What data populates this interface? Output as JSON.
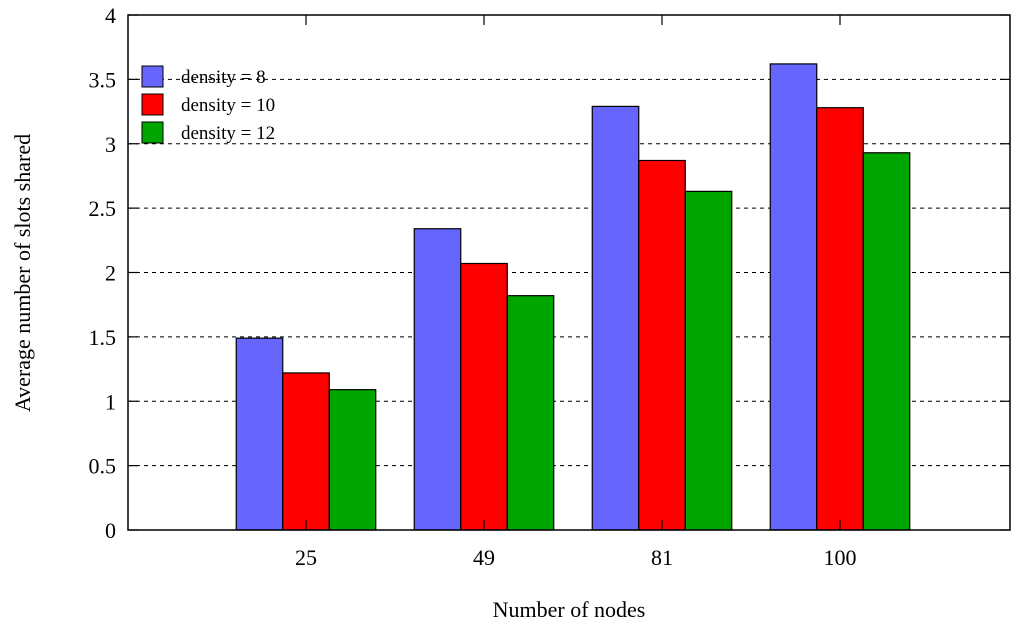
{
  "chart_data": {
    "type": "bar",
    "title": "",
    "xlabel": "Number of nodes",
    "ylabel": "Average number of slots shared",
    "categories": [
      "25",
      "49",
      "81",
      "100"
    ],
    "series": [
      {
        "name": "density = 8",
        "color": "#6666ff",
        "values": [
          1.49,
          2.34,
          3.29,
          3.62
        ]
      },
      {
        "name": "density = 10",
        "color": "#ff0000",
        "values": [
          1.22,
          2.07,
          2.87,
          3.28
        ]
      },
      {
        "name": "density = 12",
        "color": "#00a600",
        "values": [
          1.09,
          1.82,
          2.63,
          2.93
        ]
      }
    ],
    "ylim": [
      0,
      4
    ],
    "yticks": [
      "0",
      "0.5",
      "1",
      "1.5",
      "2",
      "2.5",
      "3",
      "3.5",
      "4"
    ],
    "grid": "horizontal-dashed",
    "legend": "top-left"
  }
}
